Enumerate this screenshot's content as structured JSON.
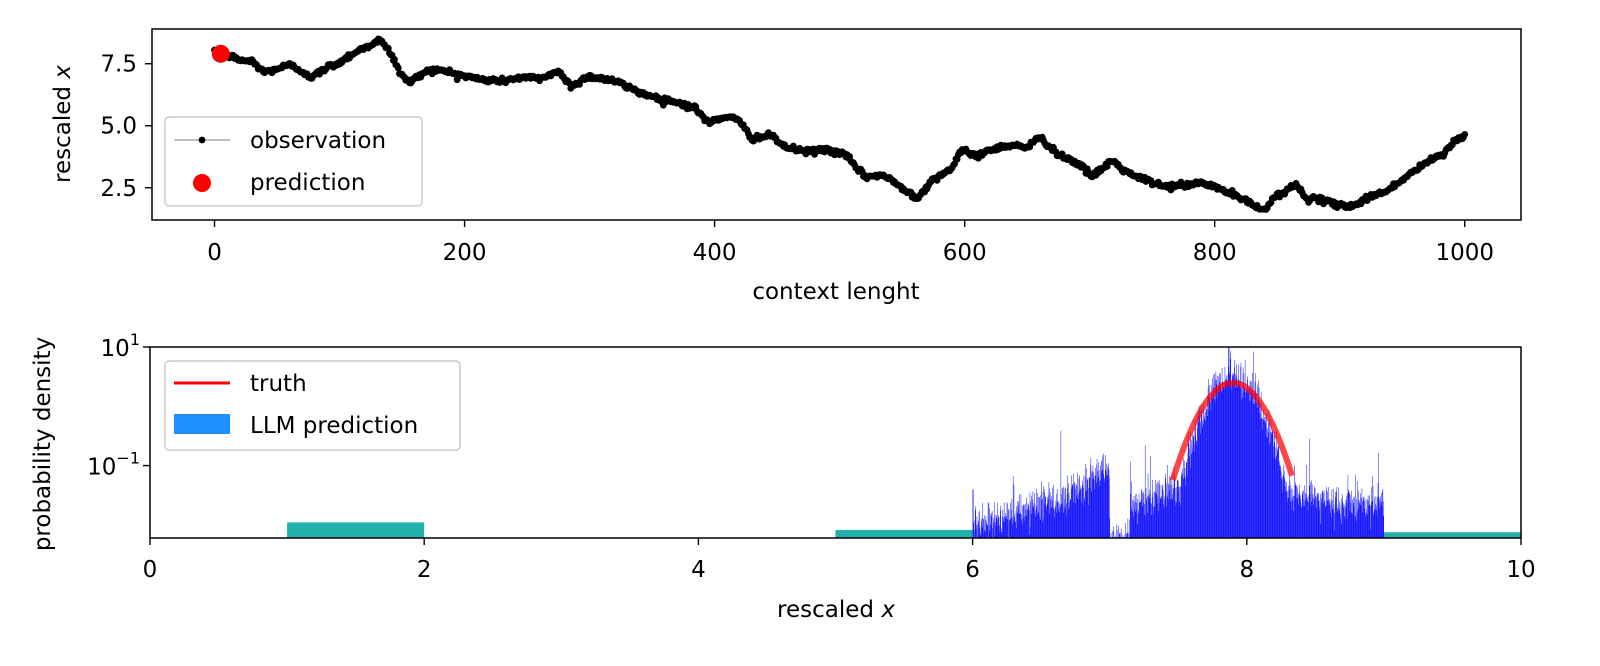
{
  "chart_data": [
    {
      "type": "line",
      "xlabel": "context lenght",
      "ylabel_prefix": "rescaled ",
      "ylabel_var": "x",
      "xlim": [
        -50,
        1045
      ],
      "ylim": [
        1.2,
        8.9
      ],
      "xticks": [
        0,
        200,
        400,
        600,
        800,
        1000
      ],
      "yticks": [
        2.5,
        5.0,
        7.5
      ],
      "xtick_labels": [
        "0",
        "200",
        "400",
        "600",
        "800",
        "1000"
      ],
      "ytick_labels": [
        "2.5",
        "5.0",
        "7.5"
      ],
      "grid": false,
      "legend_position": "lower-left",
      "legend": {
        "observation": "observation",
        "prediction": "prediction"
      },
      "observation_color": "#000000",
      "prediction_color": "#ff0000",
      "observation_anchors": [
        [
          0,
          7.9
        ],
        [
          10,
          7.85
        ],
        [
          20,
          7.65
        ],
        [
          30,
          7.6
        ],
        [
          40,
          7.15
        ],
        [
          50,
          7.3
        ],
        [
          60,
          7.45
        ],
        [
          70,
          7.2
        ],
        [
          78,
          6.95
        ],
        [
          90,
          7.35
        ],
        [
          100,
          7.55
        ],
        [
          110,
          7.9
        ],
        [
          120,
          8.15
        ],
        [
          132,
          8.45
        ],
        [
          140,
          8.0
        ],
        [
          150,
          7.0
        ],
        [
          157,
          6.75
        ],
        [
          170,
          7.25
        ],
        [
          185,
          7.2
        ],
        [
          200,
          7.0
        ],
        [
          215,
          6.85
        ],
        [
          230,
          6.8
        ],
        [
          245,
          6.95
        ],
        [
          260,
          6.9
        ],
        [
          275,
          7.2
        ],
        [
          285,
          6.6
        ],
        [
          300,
          7.0
        ],
        [
          320,
          6.8
        ],
        [
          340,
          6.35
        ],
        [
          355,
          6.1
        ],
        [
          370,
          5.95
        ],
        [
          385,
          5.7
        ],
        [
          395,
          5.1
        ],
        [
          410,
          5.4
        ],
        [
          420,
          5.15
        ],
        [
          430,
          4.5
        ],
        [
          445,
          4.6
        ],
        [
          458,
          4.1
        ],
        [
          475,
          3.95
        ],
        [
          490,
          4.05
        ],
        [
          505,
          3.8
        ],
        [
          520,
          2.95
        ],
        [
          535,
          3.0
        ],
        [
          550,
          2.5
        ],
        [
          562,
          2.1
        ],
        [
          575,
          2.85
        ],
        [
          590,
          3.3
        ],
        [
          598,
          4.0
        ],
        [
          610,
          3.8
        ],
        [
          625,
          4.1
        ],
        [
          640,
          4.25
        ],
        [
          650,
          4.1
        ],
        [
          660,
          4.55
        ],
        [
          675,
          3.85
        ],
        [
          690,
          3.5
        ],
        [
          702,
          2.95
        ],
        [
          718,
          3.6
        ],
        [
          730,
          3.1
        ],
        [
          745,
          2.8
        ],
        [
          760,
          2.55
        ],
        [
          775,
          2.6
        ],
        [
          790,
          2.7
        ],
        [
          805,
          2.45
        ],
        [
          820,
          2.1
        ],
        [
          838,
          1.6
        ],
        [
          850,
          2.2
        ],
        [
          865,
          2.6
        ],
        [
          875,
          2.05
        ],
        [
          885,
          2.0
        ],
        [
          895,
          1.85
        ],
        [
          910,
          1.75
        ],
        [
          925,
          2.15
        ],
        [
          940,
          2.45
        ],
        [
          955,
          3.0
        ],
        [
          970,
          3.55
        ],
        [
          982,
          3.8
        ],
        [
          992,
          4.4
        ],
        [
          1000,
          4.6
        ]
      ],
      "prediction_point": [
        5,
        7.9
      ]
    },
    {
      "type": "bar",
      "xlabel_prefix": "rescaled ",
      "xlabel_var": "x",
      "ylabel": "probability density",
      "xlim": [
        0,
        10
      ],
      "yscale": "log",
      "ylim": [
        0.006,
        10
      ],
      "xticks": [
        0,
        2,
        4,
        6,
        8,
        10
      ],
      "xtick_labels": [
        "0",
        "2",
        "4",
        "6",
        "8",
        "10"
      ],
      "ytick_labels": [
        {
          "value": 10,
          "base": "10",
          "exp": "1"
        },
        {
          "value": 0.1,
          "base": "10",
          "exp": "−1"
        }
      ],
      "grid": false,
      "legend_position": "upper-left",
      "legend": {
        "truth": "truth",
        "llm": "LLM prediction"
      },
      "truth_color": "#ff0000",
      "llm_color": "#1e90ff",
      "fine_bar_color": "#0000ff",
      "coarse_bar_color": "#20b2aa",
      "coarse_bins": [
        {
          "x0": 1,
          "x1": 2,
          "value": 0.011
        },
        {
          "x0": 5,
          "x1": 6,
          "value": 0.0082
        },
        {
          "x0": 9,
          "x1": 10,
          "value": 0.0075
        }
      ],
      "fine_bin_range": [
        6,
        9
      ],
      "truth_curve": {
        "mean": 7.9,
        "std": 0.16,
        "xmin": 7.46,
        "xmax": 8.33
      }
    }
  ]
}
